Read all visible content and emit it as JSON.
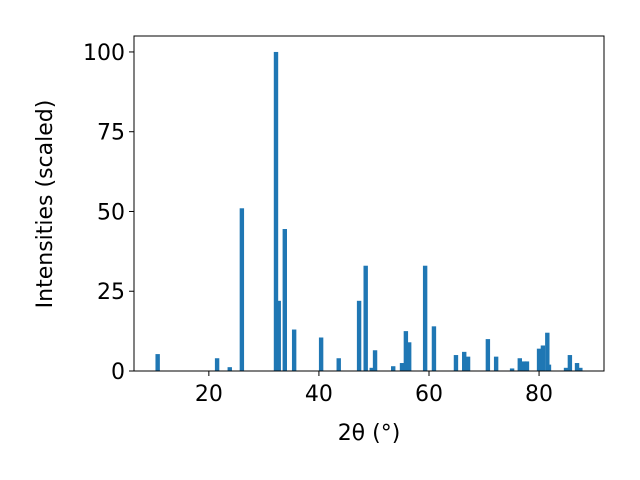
{
  "chart_data": {
    "type": "bar",
    "xlabel": "2θ (°)",
    "ylabel": "Intensities (scaled)",
    "color": "#1f77b4",
    "x": [
      10.7,
      21.5,
      23.8,
      26.0,
      32.2,
      32.7,
      33.8,
      35.5,
      40.4,
      43.6,
      47.3,
      48.5,
      49.6,
      50.2,
      53.5,
      55.1,
      55.8,
      56.4,
      59.3,
      60.9,
      64.9,
      66.4,
      67.1,
      70.7,
      72.2,
      75.1,
      76.5,
      77.3,
      77.8,
      80.0,
      80.7,
      81.5,
      81.8,
      84.9,
      85.6,
      86.9,
      87.5
    ],
    "values": [
      5.3,
      4,
      1.2,
      51,
      100,
      22,
      44.5,
      13,
      10.5,
      4,
      22,
      33,
      1,
      6.5,
      1.5,
      2.5,
      12.5,
      9,
      33,
      14,
      5,
      6,
      4.5,
      10,
      4.5,
      0.8,
      4,
      3,
      3,
      7,
      8,
      12,
      2,
      1,
      5,
      2.5,
      1
    ],
    "xlim": [
      6.4,
      91.8
    ],
    "ylim": [
      0,
      105
    ],
    "xticks": [
      20,
      40,
      60,
      80
    ],
    "yticks": [
      0,
      25,
      50,
      75,
      100
    ]
  }
}
